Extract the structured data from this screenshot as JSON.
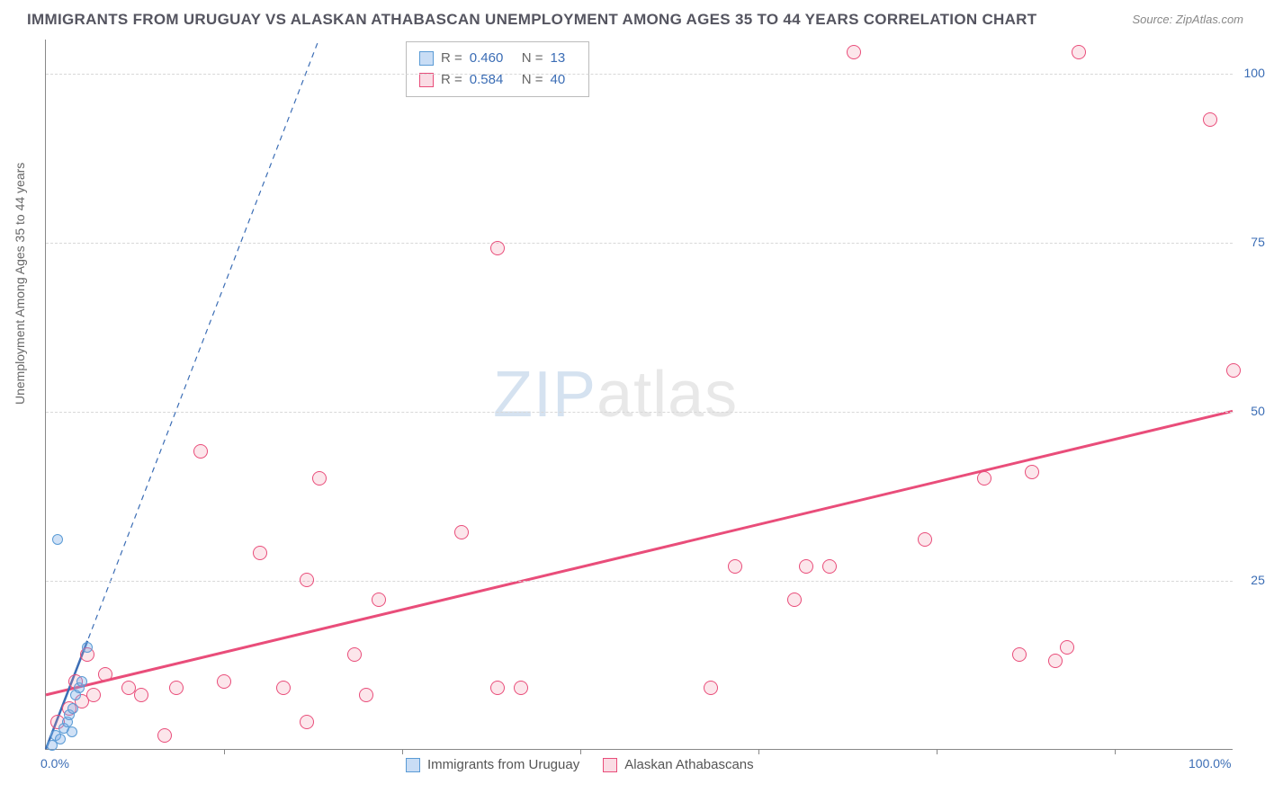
{
  "title": "IMMIGRANTS FROM URUGUAY VS ALASKAN ATHABASCAN UNEMPLOYMENT AMONG AGES 35 TO 44 YEARS CORRELATION CHART",
  "source": "Source: ZipAtlas.com",
  "ylabel": "Unemployment Among Ages 35 to 44 years",
  "watermark_a": "ZIP",
  "watermark_b": "atlas",
  "chart": {
    "type": "scatter",
    "xlim": [
      0,
      100
    ],
    "ylim": [
      0,
      105
    ],
    "yticks": [
      {
        "v": 25,
        "label": "25.0%"
      },
      {
        "v": 50,
        "label": "50.0%"
      },
      {
        "v": 75,
        "label": "75.0%"
      },
      {
        "v": 100,
        "label": "100.0%"
      }
    ],
    "xticks_minor": [
      15,
      30,
      45,
      60,
      75,
      90
    ],
    "xtick_labels": [
      {
        "v": 0,
        "label": "0.0%"
      },
      {
        "v": 100,
        "label": "100.0%"
      }
    ],
    "background_color": "#ffffff",
    "grid_color": "#d8d8d8",
    "series": [
      {
        "name": "Immigrants from Uruguay",
        "color_fill": "rgba(120,170,230,0.35)",
        "color_stroke": "#5a9bd5",
        "marker_size": 12,
        "R": "0.460",
        "N": "13",
        "trend_solid": {
          "x1": 0,
          "y1": 0,
          "x2": 3.5,
          "y2": 16
        },
        "trend_dash": {
          "x1": 0,
          "y1": 0,
          "x2": 23,
          "y2": 105
        },
        "points": [
          [
            0.5,
            0.5
          ],
          [
            0.8,
            2
          ],
          [
            1.2,
            1.5
          ],
          [
            1.5,
            3
          ],
          [
            1.8,
            4
          ],
          [
            2,
            5
          ],
          [
            2.3,
            6
          ],
          [
            2.5,
            8
          ],
          [
            2.8,
            9
          ],
          [
            3,
            10
          ],
          [
            3.5,
            15
          ],
          [
            1,
            31
          ],
          [
            2.2,
            2.5
          ]
        ]
      },
      {
        "name": "Alaskan Athabascans",
        "color_fill": "rgba(240,140,165,0.22)",
        "color_stroke": "#e94d7a",
        "marker_size": 16,
        "R": "0.584",
        "N": "40",
        "trend_solid": {
          "x1": 0,
          "y1": 8,
          "x2": 100,
          "y2": 50
        },
        "points": [
          [
            1,
            4
          ],
          [
            2,
            6
          ],
          [
            2.5,
            10
          ],
          [
            3,
            7
          ],
          [
            4,
            8
          ],
          [
            3.5,
            14
          ],
          [
            5,
            11
          ],
          [
            7,
            9
          ],
          [
            8,
            8
          ],
          [
            10,
            2
          ],
          [
            11,
            9
          ],
          [
            13,
            44
          ],
          [
            15,
            10
          ],
          [
            18,
            29
          ],
          [
            20,
            9
          ],
          [
            22,
            25
          ],
          [
            22,
            4
          ],
          [
            23,
            40
          ],
          [
            26,
            14
          ],
          [
            27,
            8
          ],
          [
            28,
            22
          ],
          [
            35,
            32
          ],
          [
            38,
            9
          ],
          [
            40,
            9
          ],
          [
            38,
            74
          ],
          [
            56,
            9
          ],
          [
            58,
            27
          ],
          [
            63,
            22
          ],
          [
            64,
            27
          ],
          [
            66,
            27
          ],
          [
            68,
            103
          ],
          [
            74,
            31
          ],
          [
            79,
            40
          ],
          [
            82,
            14
          ],
          [
            83,
            41
          ],
          [
            85,
            13
          ],
          [
            86,
            15
          ],
          [
            87,
            103
          ],
          [
            98,
            93
          ],
          [
            100,
            56
          ]
        ]
      }
    ]
  },
  "legend_top": {
    "rows": [
      {
        "swatch": "blue",
        "r_label": "R =",
        "r": "0.460",
        "n_label": "N =",
        "n": "13"
      },
      {
        "swatch": "pink",
        "r_label": "R =",
        "r": "0.584",
        "n_label": "N =",
        "n": "40"
      }
    ]
  },
  "legend_bottom": {
    "items": [
      {
        "swatch": "blue",
        "label": "Immigrants from Uruguay"
      },
      {
        "swatch": "pink",
        "label": "Alaskan Athabascans"
      }
    ]
  }
}
